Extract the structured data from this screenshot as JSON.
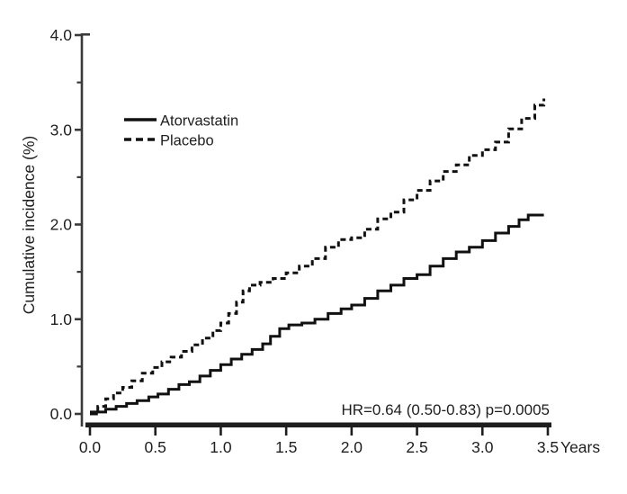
{
  "figure": {
    "background": "#ffffff",
    "ink_color": "#1e1e1e",
    "curve_color": "#111111",
    "axis_color": "#3a3a3a"
  },
  "chart_data": {
    "type": "line",
    "subtype": "kaplan-meier-cumulative-incidence",
    "title": "",
    "xlabel": "Years",
    "ylabel": "Cumulative incidence (%)",
    "xlim": [
      0,
      3.5
    ],
    "ylim": [
      0,
      4.0
    ],
    "x_ticks": [
      "0.0",
      "0.5",
      "1.0",
      "1.5",
      "2.0",
      "2.5",
      "3.0",
      "3.5"
    ],
    "y_ticks_major": [
      "0.0",
      "1.0",
      "2.0",
      "3.0",
      "4.0"
    ],
    "y_ticks_minor": [
      0.5,
      1.5,
      2.5,
      3.5
    ],
    "grid": false,
    "legend_position": "upper-left-inside",
    "annotation": "HR=0.64 (0.50-0.83)  p=0.0005",
    "series": [
      {
        "name": "Atorvastatin",
        "style": "solid",
        "points": [
          [
            0.0,
            0.0
          ],
          [
            0.05,
            0.02
          ],
          [
            0.12,
            0.05
          ],
          [
            0.2,
            0.08
          ],
          [
            0.28,
            0.11
          ],
          [
            0.36,
            0.14
          ],
          [
            0.45,
            0.18
          ],
          [
            0.52,
            0.21
          ],
          [
            0.6,
            0.26
          ],
          [
            0.68,
            0.31
          ],
          [
            0.76,
            0.34
          ],
          [
            0.84,
            0.4
          ],
          [
            0.92,
            0.46
          ],
          [
            1.0,
            0.52
          ],
          [
            1.08,
            0.58
          ],
          [
            1.16,
            0.63
          ],
          [
            1.24,
            0.68
          ],
          [
            1.32,
            0.74
          ],
          [
            1.38,
            0.82
          ],
          [
            1.45,
            0.9
          ],
          [
            1.52,
            0.94
          ],
          [
            1.62,
            0.96
          ],
          [
            1.72,
            1.0
          ],
          [
            1.82,
            1.06
          ],
          [
            1.92,
            1.11
          ],
          [
            2.0,
            1.15
          ],
          [
            2.1,
            1.22
          ],
          [
            2.2,
            1.3
          ],
          [
            2.3,
            1.36
          ],
          [
            2.4,
            1.43
          ],
          [
            2.5,
            1.47
          ],
          [
            2.6,
            1.56
          ],
          [
            2.7,
            1.64
          ],
          [
            2.8,
            1.71
          ],
          [
            2.9,
            1.76
          ],
          [
            3.0,
            1.83
          ],
          [
            3.1,
            1.91
          ],
          [
            3.2,
            1.98
          ],
          [
            3.28,
            2.05
          ],
          [
            3.35,
            2.1
          ],
          [
            3.47,
            2.1
          ]
        ]
      },
      {
        "name": "Placebo",
        "style": "dashed",
        "points": [
          [
            0.0,
            0.02
          ],
          [
            0.06,
            0.08
          ],
          [
            0.12,
            0.16
          ],
          [
            0.18,
            0.22
          ],
          [
            0.25,
            0.28
          ],
          [
            0.32,
            0.35
          ],
          [
            0.4,
            0.43
          ],
          [
            0.48,
            0.49
          ],
          [
            0.55,
            0.55
          ],
          [
            0.62,
            0.6
          ],
          [
            0.7,
            0.66
          ],
          [
            0.78,
            0.73
          ],
          [
            0.86,
            0.8
          ],
          [
            0.94,
            0.88
          ],
          [
            1.0,
            0.96
          ],
          [
            1.06,
            1.06
          ],
          [
            1.12,
            1.18
          ],
          [
            1.17,
            1.3
          ],
          [
            1.22,
            1.36
          ],
          [
            1.3,
            1.39
          ],
          [
            1.4,
            1.43
          ],
          [
            1.5,
            1.49
          ],
          [
            1.6,
            1.56
          ],
          [
            1.7,
            1.64
          ],
          [
            1.8,
            1.76
          ],
          [
            1.9,
            1.84
          ],
          [
            2.0,
            1.86
          ],
          [
            2.1,
            1.95
          ],
          [
            2.2,
            2.06
          ],
          [
            2.3,
            2.13
          ],
          [
            2.4,
            2.26
          ],
          [
            2.5,
            2.36
          ],
          [
            2.6,
            2.46
          ],
          [
            2.7,
            2.56
          ],
          [
            2.8,
            2.63
          ],
          [
            2.9,
            2.73
          ],
          [
            3.0,
            2.79
          ],
          [
            3.1,
            2.87
          ],
          [
            3.2,
            3.01
          ],
          [
            3.3,
            3.12
          ],
          [
            3.4,
            3.26
          ],
          [
            3.47,
            3.33
          ]
        ]
      }
    ]
  }
}
